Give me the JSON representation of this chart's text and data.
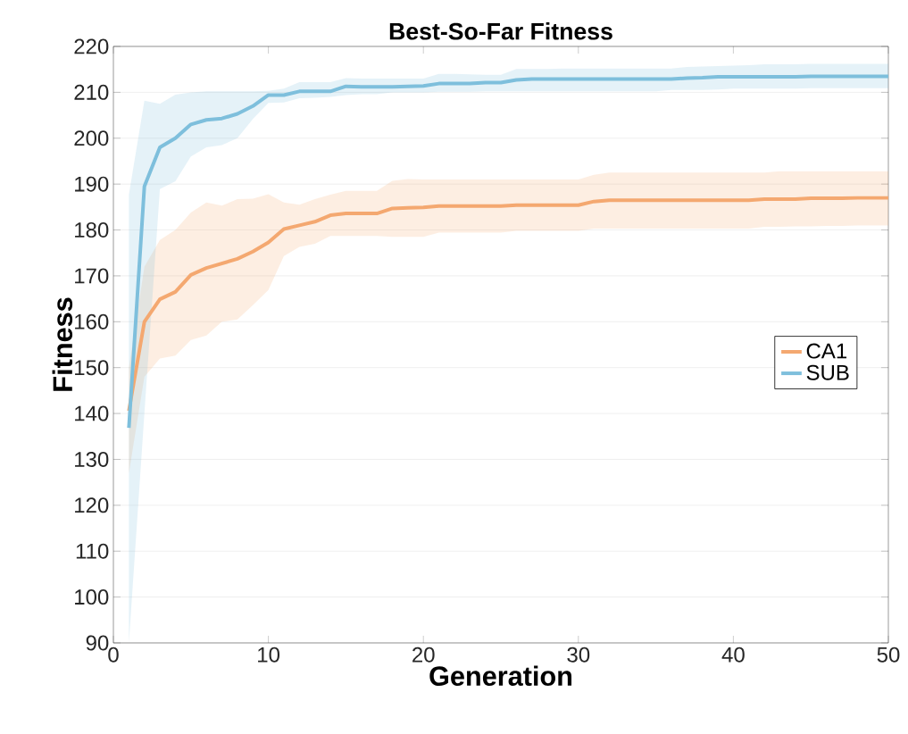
{
  "chart_data": {
    "type": "line",
    "title": "Best-So-Far Fitness",
    "xlabel": "Generation",
    "ylabel": "Fitness",
    "x": [
      1,
      2,
      3,
      4,
      5,
      6,
      7,
      8,
      9,
      10,
      11,
      12,
      13,
      14,
      15,
      16,
      17,
      18,
      19,
      20,
      21,
      22,
      23,
      24,
      25,
      26,
      27,
      28,
      29,
      30,
      31,
      32,
      33,
      34,
      35,
      36,
      37,
      38,
      39,
      40,
      41,
      42,
      43,
      44,
      45,
      46,
      47,
      48,
      49,
      50
    ],
    "series": [
      {
        "name": "CA1",
        "color": "#f4a870",
        "values": [
          140.6,
          160,
          164.9,
          166.5,
          170.2,
          171.7,
          172.7,
          173.7,
          175.3,
          177.3,
          180.2,
          181,
          181.8,
          183.2,
          183.6,
          183.6,
          183.6,
          184.7,
          184.8,
          184.9,
          185.2,
          185.2,
          185.2,
          185.2,
          185.2,
          185.4,
          185.4,
          185.4,
          185.4,
          185.4,
          186.2,
          186.5,
          186.5,
          186.5,
          186.5,
          186.5,
          186.5,
          186.5,
          186.5,
          186.5,
          186.5,
          186.7,
          186.7,
          186.7,
          186.9,
          186.9,
          186.9,
          187,
          187,
          187
        ],
        "lower": [
          127,
          148,
          152,
          152.6,
          156,
          157,
          160,
          160.5,
          163.6,
          166.9,
          174.3,
          176.3,
          177,
          178.7,
          178.7,
          178.7,
          178.7,
          178.5,
          178.5,
          178.5,
          179.4,
          179.4,
          179.4,
          179.4,
          179.4,
          179.8,
          179.8,
          179.8,
          179.8,
          179.8,
          180.3,
          180.3,
          180.3,
          180.3,
          180.3,
          180.3,
          180.3,
          180.3,
          180.3,
          180.3,
          180.3,
          180.7,
          180.7,
          180.8,
          180.8,
          180.9,
          180.9,
          181,
          181,
          181
        ],
        "upper": [
          150,
          172,
          177.8,
          180,
          183.8,
          186,
          185.3,
          186.7,
          186.8,
          187.8,
          186,
          185.5,
          186.7,
          187.7,
          188.5,
          188.5,
          188.5,
          190.7,
          191.1,
          191,
          191,
          191,
          191,
          191,
          191,
          191,
          191,
          191,
          191,
          191,
          192,
          192.5,
          192.5,
          192.5,
          192.5,
          192.5,
          192.5,
          192.5,
          192.5,
          192.5,
          192.5,
          192.5,
          192.8,
          192.8,
          192.8,
          192.8,
          192.8,
          192.8,
          192.8,
          192.8
        ]
      },
      {
        "name": "SUB",
        "color": "#7ebfdc",
        "values": [
          136.9,
          189.5,
          198,
          200,
          203,
          204,
          204.3,
          205.3,
          207,
          209.4,
          209.4,
          210.2,
          210.2,
          210.2,
          211.3,
          211.2,
          211.2,
          211.2,
          211.3,
          211.4,
          211.9,
          211.9,
          211.9,
          212.1,
          212.1,
          212.7,
          212.9,
          212.9,
          212.9,
          212.9,
          212.9,
          212.9,
          212.9,
          212.9,
          212.9,
          212.9,
          213.1,
          213.2,
          213.4,
          213.4,
          213.4,
          213.4,
          213.4,
          213.4,
          213.5,
          213.5,
          213.5,
          213.5,
          213.5,
          213.5
        ],
        "lower": [
          90,
          140,
          188.9,
          190.6,
          196,
          198,
          198.5,
          200,
          204.2,
          207.7,
          207.8,
          208.7,
          208.8,
          209,
          209.4,
          209.6,
          209.6,
          210,
          210,
          210,
          210.1,
          210.1,
          210.1,
          210.2,
          210.2,
          210.2,
          210.2,
          210.2,
          210.2,
          210.2,
          210.2,
          210.2,
          210.2,
          210.2,
          210.2,
          210.5,
          210.5,
          210.5,
          210.6,
          210.8,
          210.8,
          210.8,
          210.8,
          210.8,
          210.9,
          210.9,
          210.9,
          210.9,
          210.9,
          210.9
        ],
        "upper": [
          187.7,
          208.2,
          207.5,
          209.5,
          210,
          210.2,
          210.2,
          210.2,
          210.2,
          210.3,
          210.8,
          212.2,
          212.2,
          212.2,
          213.1,
          213,
          213,
          213,
          213,
          213,
          214,
          214,
          213.9,
          213.8,
          213.8,
          215.1,
          215.1,
          215.1,
          215.2,
          215.2,
          215.2,
          215.2,
          215.2,
          215.2,
          215.2,
          215.2,
          215.5,
          215.6,
          215.7,
          215.8,
          215.9,
          216.1,
          216.1,
          216.1,
          216.2,
          216.2,
          216.2,
          216.2,
          216.2,
          216.2
        ]
      }
    ],
    "xlim": [
      0,
      50
    ],
    "xticks": [
      0,
      10,
      20,
      30,
      40,
      50
    ],
    "ylim": [
      90,
      220
    ],
    "yticks": [
      90,
      100,
      110,
      120,
      130,
      140,
      150,
      160,
      170,
      180,
      190,
      200,
      210,
      220
    ],
    "grid": "y",
    "legend": "right",
    "marker": "none",
    "line_style": "solid"
  }
}
